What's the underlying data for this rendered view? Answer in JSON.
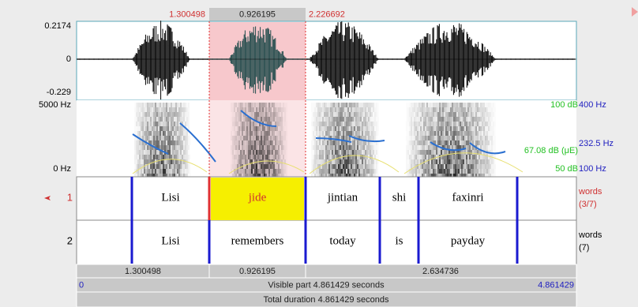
{
  "selection": {
    "start": "1.300498",
    "duration": "0.926195",
    "end": "2.226692"
  },
  "waveform": {
    "max": "0.2174",
    "zero": "0",
    "min": "-0.229"
  },
  "spectrogram": {
    "freq_top": "5000 Hz",
    "freq_bottom": "0 Hz",
    "db_top": "100 dB",
    "pitch_top": "400 Hz",
    "pitch_mid": "232.5 Hz",
    "db_mid": "67.08 dB (μE)",
    "db_bottom": "50 dB",
    "pitch_bottom": "100 Hz"
  },
  "tiers": [
    {
      "number": "1",
      "name": "words",
      "count": "(3/7)",
      "intervals": [
        "Lisi",
        "jide",
        "jintian",
        "shi",
        "faxinri"
      ]
    },
    {
      "number": "2",
      "name": "words",
      "count": "(7)",
      "intervals": [
        "Lisi",
        "remembers",
        "today",
        "is",
        "payday"
      ]
    }
  ],
  "durations": [
    "1.300498",
    "0.926195",
    "2.634736"
  ],
  "visible": {
    "start": "0",
    "label": "Visible part 4.861429 seconds",
    "end": "4.861429"
  },
  "total": "Total duration 4.861429 seconds"
}
